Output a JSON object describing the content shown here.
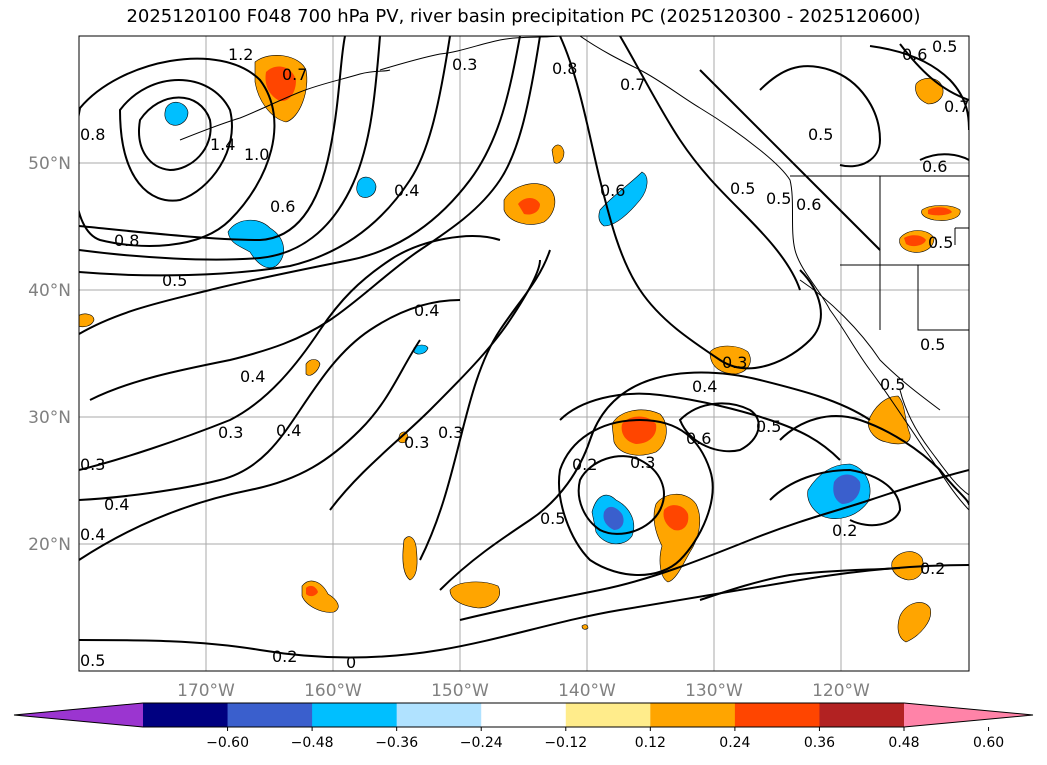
{
  "title": "2025120100 F048 700 hPa PV, river basin precipitation PC (2025120300 - 2025120600)",
  "map": {
    "latitude_labels": [
      "50°N",
      "40°N",
      "30°N",
      "20°N"
    ],
    "longitude_labels": [
      "170°W",
      "160°W",
      "150°W",
      "140°W",
      "130°W",
      "120°W"
    ],
    "grid": true,
    "contour_labels": [
      "1.2",
      "0.7",
      "0.3",
      "0.8",
      "0.7",
      "0.6",
      "0.5",
      "0.7",
      "0.8",
      "1.4",
      "1.0",
      "0.6",
      "0.8",
      "0.5",
      "0.4",
      "0.6",
      "0.5",
      "0.5",
      "0.6",
      "0.6",
      "0.5",
      "0.4",
      "0.4",
      "0.3",
      "0.4",
      "0.3",
      "0.3",
      "0.4",
      "0.3",
      "0.4",
      "0.5",
      "0.6",
      "0.5",
      "0.2",
      "0.3",
      "0.5",
      "0.2",
      "0.2",
      "0.4",
      "0.5",
      "0.2",
      "0.2",
      "0",
      "0.5",
      "0.3",
      "0.5"
    ]
  },
  "colorbar": {
    "colors": [
      "#9b35d0",
      "#000080",
      "#3a5fcd",
      "#00bfff",
      "#b0e2ff",
      "#ffffff",
      "#ffec8b",
      "#ffa500",
      "#ff4500",
      "#b22222",
      "#ff83a8"
    ],
    "tick_labels": [
      "−0.60",
      "−0.48",
      "−0.36",
      "−0.24",
      "−0.12",
      "0.12",
      "0.24",
      "0.36",
      "0.48",
      "0.60"
    ]
  }
}
